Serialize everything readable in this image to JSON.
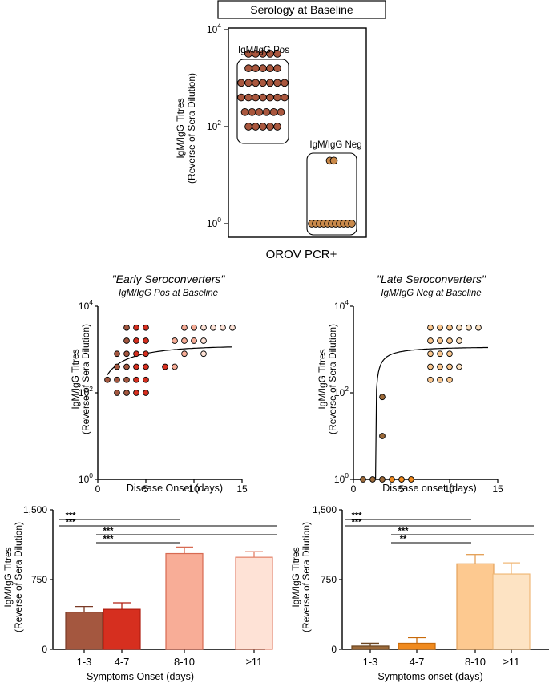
{
  "colors": {
    "c13": "#a4573f",
    "c47": "#d62f1f",
    "c810": "#f8ad97",
    "c11": "#fee2d6",
    "cpos": "#a9573e",
    "cneg": "#c9894a",
    "l_c13": "#9c6a3a",
    "l_c47": "#f08a1e",
    "l_c810": "#fdc990",
    "l_c11": "#fde3c3"
  },
  "chart_data": [
    {
      "id": "baseline",
      "type": "scatter",
      "title": "Serology at Baseline",
      "ylabel": [
        "IgM/IgG Titres",
        "(Reverse of Sera Dilution)"
      ],
      "xlabel": "OROV PCR+",
      "yscale": "log",
      "ylim": [
        1,
        10000
      ],
      "yticks": [
        {
          "value": 1,
          "base": "10",
          "exp": "0"
        },
        {
          "value": 100,
          "base": "10",
          "exp": "2"
        },
        {
          "value": 10000,
          "base": "10",
          "exp": "4"
        }
      ],
      "groups": [
        {
          "name": "IgM/IgG Pos",
          "color": "#a9573e",
          "rows": [
            {
              "y": 3200,
              "n": 5
            },
            {
              "y": 1600,
              "n": 5
            },
            {
              "y": 800,
              "n": 7
            },
            {
              "y": 400,
              "n": 7
            },
            {
              "y": 200,
              "n": 6
            },
            {
              "y": 100,
              "n": 5
            }
          ]
        },
        {
          "name": "IgM/IgG Neg",
          "color": "#c9894a",
          "rows": [
            {
              "y": 20,
              "n": 2
            },
            {
              "y": 1,
              "n": 11
            }
          ]
        }
      ]
    },
    {
      "id": "early",
      "type": "scatter",
      "title": "\"Early Seroconverters\"",
      "subtitle": "IgM/IgG Pos at Baseline",
      "xlabel": "Disease Onset (days)",
      "ylabel": [
        "IgM/IgG Titres",
        "(Reverse of Sera Dilution)"
      ],
      "yscale": "log",
      "xlim": [
        0,
        15
      ],
      "ylim": [
        1,
        10000
      ],
      "xticks": [
        0,
        5,
        10,
        15
      ],
      "yticks": [
        {
          "value": 1,
          "base": "10",
          "exp": "0"
        },
        {
          "value": 100,
          "base": "10",
          "exp": "2"
        },
        {
          "value": 10000,
          "base": "10",
          "exp": "4"
        }
      ],
      "fit": {
        "type": "logistic",
        "start": 260,
        "plateau": 1200,
        "x0": 0,
        "k": 0.55
      },
      "series": [
        {
          "name": "1-3",
          "color": "#a4573f",
          "points": [
            [
              1,
              200
            ],
            [
              2,
              100
            ],
            [
              2,
              200
            ],
            [
              2,
              400
            ],
            [
              2,
              800
            ],
            [
              3,
              100
            ],
            [
              3,
              200
            ],
            [
              3,
              400
            ],
            [
              3,
              800
            ],
            [
              3,
              1600
            ],
            [
              3,
              3200
            ]
          ]
        },
        {
          "name": "4-7",
          "color": "#d62f1f",
          "points": [
            [
              4,
              100
            ],
            [
              4,
              200
            ],
            [
              4,
              400
            ],
            [
              4,
              800
            ],
            [
              4,
              1600
            ],
            [
              4,
              3200
            ],
            [
              5,
              100
            ],
            [
              5,
              200
            ],
            [
              5,
              400
            ],
            [
              5,
              800
            ],
            [
              5,
              1600
            ],
            [
              5,
              3200
            ],
            [
              7,
              400
            ]
          ]
        },
        {
          "name": "8-10",
          "color": "#f8ad97",
          "points": [
            [
              8,
              400
            ],
            [
              8,
              1600
            ],
            [
              9,
              800
            ],
            [
              9,
              1600
            ],
            [
              9,
              3200
            ],
            [
              10,
              1600
            ],
            [
              10,
              3200
            ]
          ]
        },
        {
          "name": ">=11",
          "color": "#fee2d6",
          "points": [
            [
              11,
              800
            ],
            [
              11,
              1600
            ],
            [
              11,
              3200
            ],
            [
              12,
              3200
            ],
            [
              13,
              3200
            ],
            [
              14,
              3200
            ]
          ]
        }
      ]
    },
    {
      "id": "late",
      "type": "scatter",
      "title": "\"Late Seroconverters\"",
      "subtitle": "IgM/IgG Neg at Baseline",
      "xlabel": "Disease onset (days)",
      "ylabel": [
        "IgM/IgG Titres",
        "(Reverse of Sera Dilution)"
      ],
      "yscale": "log",
      "xlim": [
        0,
        15
      ],
      "ylim": [
        1,
        10000
      ],
      "xticks": [
        0,
        5,
        10,
        15
      ],
      "yticks": [
        {
          "value": 1,
          "base": "10",
          "exp": "0"
        },
        {
          "value": 100,
          "base": "10",
          "exp": "2"
        },
        {
          "value": 10000,
          "base": "10",
          "exp": "4"
        }
      ],
      "fit": {
        "type": "saturation",
        "x0": 2.3,
        "plateau": 1200,
        "half": 0.9
      },
      "series": [
        {
          "name": "1-3",
          "color": "#9c6a3a",
          "points": [
            [
              1,
              1
            ],
            [
              2,
              1
            ],
            [
              3,
              1
            ],
            [
              3,
              10
            ],
            [
              3,
              80
            ]
          ]
        },
        {
          "name": "4-7",
          "color": "#f08a1e",
          "points": [
            [
              4,
              1
            ],
            [
              5,
              1
            ],
            [
              6,
              1
            ]
          ]
        },
        {
          "name": "8-10",
          "color": "#fdc990",
          "points": [
            [
              8,
              200
            ],
            [
              8,
              400
            ],
            [
              8,
              800
            ],
            [
              8,
              1600
            ],
            [
              8,
              3200
            ],
            [
              9,
              200
            ],
            [
              9,
              400
            ],
            [
              9,
              800
            ],
            [
              9,
              1600
            ],
            [
              9,
              3200
            ],
            [
              10,
              200
            ],
            [
              10,
              400
            ],
            [
              10,
              800
            ],
            [
              10,
              1600
            ],
            [
              10,
              3200
            ]
          ]
        },
        {
          "name": ">=11",
          "color": "#fde3c3",
          "points": [
            [
              11,
              400
            ],
            [
              11,
              1600
            ],
            [
              11,
              3200
            ],
            [
              12,
              3200
            ],
            [
              13,
              3200
            ]
          ]
        }
      ]
    },
    {
      "id": "bar-early",
      "type": "bar",
      "xlabel": "Symptoms Onset (days)",
      "ylabel": [
        "IgM/IgG Titres",
        "(Reverse of Sera Dilution)"
      ],
      "ylim": [
        0,
        1500
      ],
      "yticks": [
        {
          "value": 0,
          "label": "0"
        },
        {
          "value": 750,
          "label": "750"
        },
        {
          "value": 1500,
          "label": "1,500"
        }
      ],
      "categories": [
        "1-3",
        "4-7",
        "8-10",
        "≥11"
      ],
      "values": [
        400,
        430,
        1030,
        990
      ],
      "errors": [
        60,
        70,
        70,
        60
      ],
      "colors": [
        "#a4573f",
        "#d62f1f",
        "#f8ad97",
        "#fee2d6"
      ],
      "edges": [
        "#7a3a26",
        "#b01e10",
        "#d76a52",
        "#e38067"
      ],
      "significance": [
        {
          "from": 0,
          "to": 2,
          "label": "***",
          "level": 4
        },
        {
          "from": 0,
          "to": 3,
          "label": "***",
          "level": 3
        },
        {
          "from": 1,
          "to": 3,
          "label": "***",
          "level": 2
        },
        {
          "from": 1,
          "to": 2,
          "label": "***",
          "level": 1
        }
      ]
    },
    {
      "id": "bar-late",
      "type": "bar",
      "xlabel": "Symptoms onset (days)",
      "ylabel": [
        "IgM/IgG Titres",
        "(Reverse of Sera Dilution)"
      ],
      "ylim": [
        0,
        1500
      ],
      "yticks": [
        {
          "value": 0,
          "label": "0"
        },
        {
          "value": 750,
          "label": "750"
        },
        {
          "value": 1500,
          "label": "1,500"
        }
      ],
      "categories": [
        "1-3",
        "4-7",
        "8-10",
        "≥11"
      ],
      "values": [
        35,
        65,
        920,
        810
      ],
      "errors": [
        30,
        60,
        100,
        120
      ],
      "colors": [
        "#9c6a3a",
        "#f08a1e",
        "#fdc990",
        "#fde3c3"
      ],
      "edges": [
        "#6b4520",
        "#c86a0a",
        "#e4a25a",
        "#f0b878"
      ],
      "significance": [
        {
          "from": 0,
          "to": 2,
          "label": "***",
          "level": 4
        },
        {
          "from": 0,
          "to": 3,
          "label": "***",
          "level": 3
        },
        {
          "from": 1,
          "to": 3,
          "label": "***",
          "level": 2
        },
        {
          "from": 1,
          "to": 2,
          "label": "**",
          "level": 1
        }
      ]
    }
  ]
}
